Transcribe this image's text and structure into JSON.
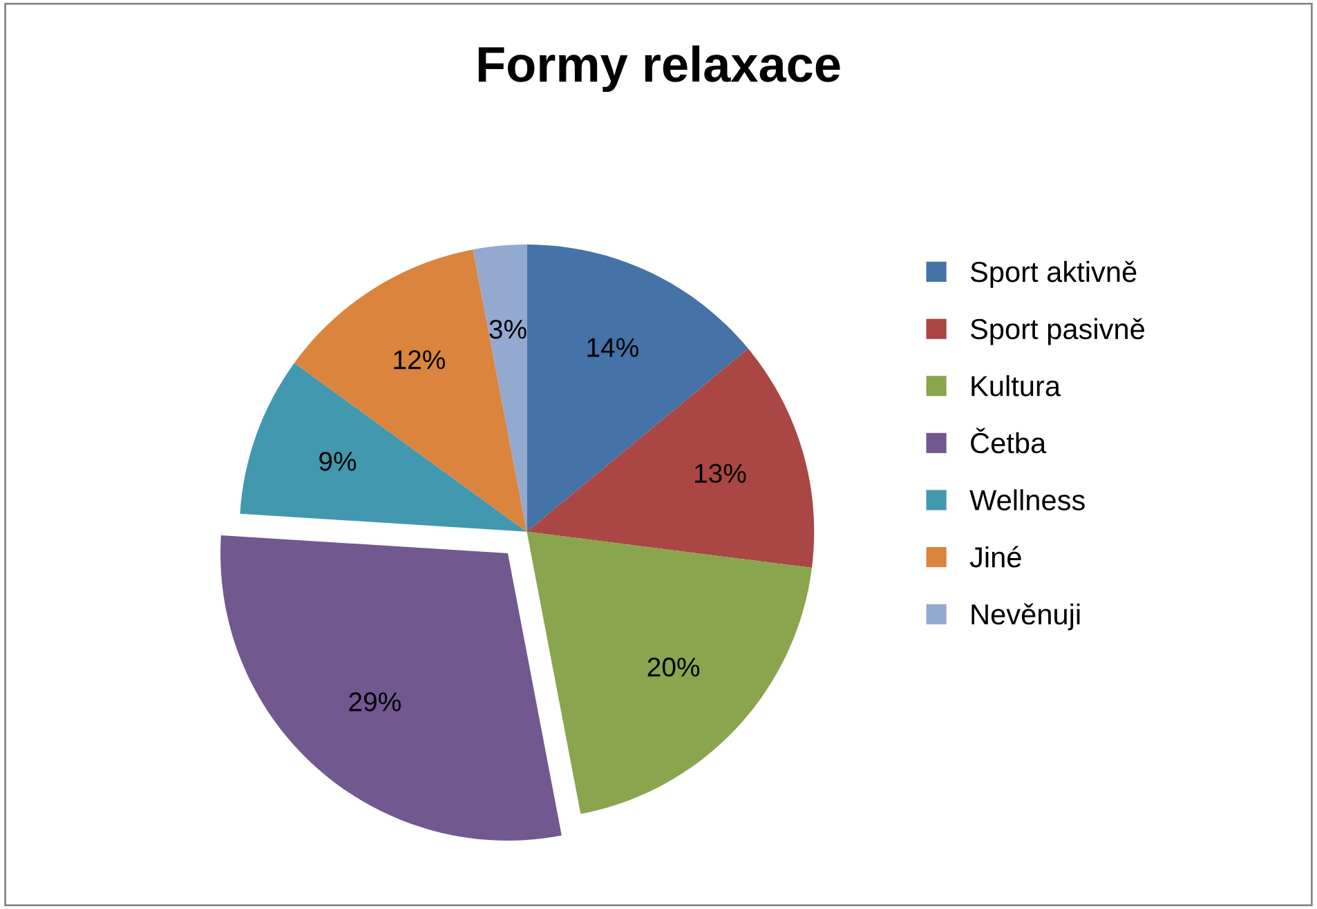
{
  "chart_data": {
    "type": "pie",
    "title": "Formy relaxace",
    "categories": [
      "Sport aktivně",
      "Sport pasivně",
      "Kultura",
      "Četba",
      "Wellness",
      "Jiné",
      "Nevěnuji"
    ],
    "values": [
      14,
      13,
      20,
      29,
      9,
      12,
      3
    ],
    "value_labels": [
      "14%",
      "13%",
      "20%",
      "29%",
      "9%",
      "12%",
      "3%"
    ],
    "colors": [
      "#4572a7",
      "#aa4643",
      "#89a54e",
      "#71588f",
      "#4198af",
      "#db843d",
      "#93a9cf"
    ],
    "legend": "right"
  }
}
